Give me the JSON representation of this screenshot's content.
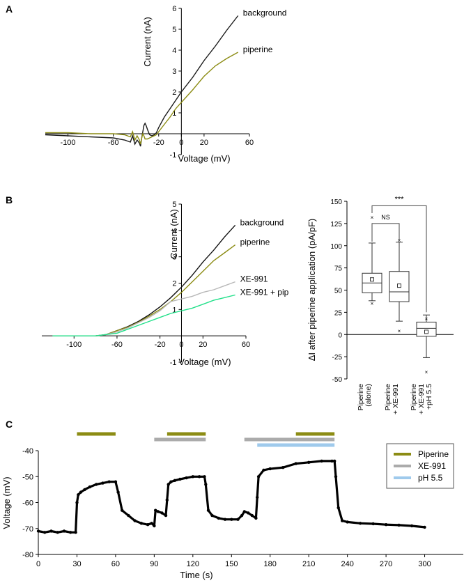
{
  "panels": {
    "A": {
      "label": "A",
      "chart_data": {
        "type": "line",
        "xlabel": "Voltage (mV)",
        "ylabel": "Current (nA)",
        "xlim": [
          -120,
          60
        ],
        "ylim": [
          -1,
          6
        ],
        "xticks": [
          -100,
          -60,
          -20,
          0,
          20,
          60
        ],
        "yticks": [
          -1,
          1,
          2,
          3,
          4,
          5,
          6
        ],
        "series": [
          {
            "name": "background",
            "color": "#1a1a1a",
            "x": [
              -120,
              -100,
              -80,
              -60,
              -50,
              -45,
              -43,
              -41,
              -39,
              -37,
              -36,
              -35,
              -34,
              -33,
              -32,
              -31,
              -30,
              -29,
              -28,
              -26,
              -24,
              -22,
              -20,
              -15,
              -10,
              -5,
              0,
              10,
              20,
              30,
              40,
              50
            ],
            "y": [
              -0.05,
              -0.1,
              -0.15,
              -0.2,
              -0.3,
              -0.4,
              -0.1,
              -0.5,
              -0.3,
              -0.45,
              -0.6,
              -0.2,
              0.1,
              0.4,
              0.5,
              0.38,
              0.22,
              0.08,
              -0.05,
              -0.1,
              -0.05,
              0.05,
              0.3,
              0.8,
              1.2,
              1.6,
              2.0,
              2.7,
              3.5,
              4.2,
              4.95,
              5.65
            ]
          },
          {
            "name": "piperine",
            "color": "#8c8c14",
            "x": [
              -120,
              -100,
              -80,
              -60,
              -50,
              -45,
              -43,
              -41,
              -39,
              -37,
              -36,
              -35,
              -34,
              -33,
              -32,
              -30,
              -28,
              -26,
              -24,
              -22,
              -20,
              -15,
              -10,
              -5,
              0,
              10,
              20,
              30,
              40,
              50
            ],
            "y": [
              0.05,
              0.05,
              0.0,
              0.0,
              -0.05,
              -0.15,
              0.1,
              -0.3,
              -0.1,
              -0.3,
              -0.5,
              -0.2,
              0.0,
              -0.1,
              -0.25,
              -0.25,
              -0.2,
              -0.15,
              -0.1,
              -0.05,
              0.1,
              0.45,
              0.8,
              1.2,
              1.5,
              2.1,
              2.75,
              3.25,
              3.6,
              3.9
            ]
          }
        ]
      }
    },
    "B": {
      "label": "B",
      "chart_data": [
        {
          "type": "line",
          "xlabel": "Voltage (mV)",
          "ylabel": "Current (nA)",
          "xlim": [
            -130,
            60
          ],
          "ylim": [
            -1,
            5
          ],
          "xticks": [
            -100,
            -60,
            -20,
            0,
            20,
            60
          ],
          "yticks": [
            -1,
            1,
            2,
            3,
            4,
            5
          ],
          "series": [
            {
              "name": "background",
              "color": "#111111",
              "x": [
                -120,
                -100,
                -80,
                -70,
                -60,
                -50,
                -40,
                -30,
                -20,
                -10,
                0,
                10,
                20,
                30,
                40,
                50
              ],
              "y": [
                0.0,
                0.0,
                0.0,
                0.05,
                0.2,
                0.35,
                0.55,
                0.8,
                1.1,
                1.45,
                1.85,
                2.3,
                2.8,
                3.25,
                3.75,
                4.2
              ]
            },
            {
              "name": "piperine",
              "color": "#8c8c14",
              "x": [
                -120,
                -100,
                -80,
                -70,
                -60,
                -50,
                -40,
                -30,
                -20,
                -10,
                0,
                10,
                20,
                30,
                40,
                50
              ],
              "y": [
                0.0,
                0.0,
                0.0,
                0.05,
                0.2,
                0.33,
                0.52,
                0.75,
                1.0,
                1.3,
                1.65,
                2.05,
                2.45,
                2.85,
                3.15,
                3.45
              ]
            },
            {
              "name": "XE-991",
              "color": "#b8b8b8",
              "x": [
                -120,
                -100,
                -80,
                -70,
                -60,
                -50,
                -40,
                -30,
                -20,
                -10,
                -5,
                0,
                10,
                20,
                30,
                40,
                50
              ],
              "y": [
                0.0,
                0.0,
                0.0,
                0.05,
                0.15,
                0.3,
                0.5,
                0.7,
                0.95,
                1.3,
                1.35,
                1.4,
                1.5,
                1.65,
                1.75,
                1.9,
                2.05
              ]
            },
            {
              "name": "XE-991 + pip",
              "color": "#22e08a",
              "x": [
                -120,
                -100,
                -80,
                -70,
                -60,
                -50,
                -40,
                -30,
                -20,
                -10,
                0,
                10,
                20,
                30,
                40,
                50
              ],
              "y": [
                0.0,
                0.0,
                0.0,
                0.05,
                0.1,
                0.25,
                0.4,
                0.55,
                0.7,
                0.85,
                0.95,
                1.05,
                1.2,
                1.35,
                1.45,
                1.55
              ]
            }
          ]
        },
        {
          "type": "box",
          "ylabel": "ΔI after piperine application (pA/pF)",
          "ylim": [
            -50,
            150
          ],
          "yticks": [
            -50,
            -25,
            0,
            25,
            50,
            75,
            100,
            125,
            150
          ],
          "groups": [
            {
              "label_lines": [
                "Piperine",
                "(alone)"
              ],
              "q1": 47,
              "median": 58,
              "q3": 69,
              "whisker_low": 38,
              "whisker_high": 103,
              "mean": 62,
              "outliers": [
                132,
                35
              ]
            },
            {
              "label_lines": [
                "Piperine",
                "+ XE-991"
              ],
              "q1": 37,
              "median": 48,
              "q3": 71,
              "whisker_low": 15,
              "whisker_high": 104,
              "mean": 55,
              "outliers": [
                106,
                4
              ]
            },
            {
              "label_lines": [
                "Piperine",
                "+ XE-991",
                "+pH 5.5"
              ],
              "q1": -2,
              "median": 7,
              "q3": 14,
              "whisker_low": -26,
              "whisker_high": 22,
              "mean": 3,
              "outliers": [
                -42,
                18
              ]
            }
          ],
          "annotations": [
            {
              "text": "NS",
              "between": [
                0,
                1
              ]
            },
            {
              "text": "***",
              "between": [
                0,
                2
              ]
            }
          ]
        }
      ]
    },
    "C": {
      "label": "C",
      "chart_data": {
        "type": "scatter",
        "xlabel": "Time (s)",
        "ylabel": "Voltage (mV)",
        "xlim": [
          0,
          330
        ],
        "ylim": [
          -80,
          -40
        ],
        "xticks": [
          0,
          30,
          60,
          90,
          120,
          150,
          180,
          210,
          240,
          270,
          300
        ],
        "yticks": [
          -80,
          -70,
          -60,
          -50,
          -40
        ],
        "trace": {
          "color": "#000000",
          "x": [
            0,
            5,
            10,
            15,
            20,
            25,
            29,
            30,
            31,
            33,
            36,
            40,
            45,
            50,
            55,
            60,
            62,
            65,
            70,
            75,
            80,
            85,
            88,
            90,
            91,
            93,
            96,
            99,
            100,
            101,
            103,
            106,
            110,
            115,
            120,
            125,
            129,
            130,
            132,
            135,
            140,
            145,
            150,
            155,
            158,
            160,
            163,
            166,
            169,
            170,
            171,
            175,
            180,
            190,
            200,
            210,
            220,
            228,
            230,
            231,
            233,
            236,
            240,
            250,
            260,
            270,
            280,
            290,
            300
          ],
          "y": [
            -71,
            -71.5,
            -71,
            -71.5,
            -71,
            -71.5,
            -71.5,
            -60,
            -57,
            -56,
            -55,
            -54,
            -53,
            -52.5,
            -52,
            -52,
            -56,
            -63,
            -65,
            -67,
            -68,
            -68.5,
            -68,
            -69,
            -63,
            -63.5,
            -64,
            -65,
            -59,
            -53,
            -52,
            -51.5,
            -51,
            -50.5,
            -50,
            -50,
            -50,
            -53,
            -63,
            -65,
            -66,
            -66.5,
            -66.5,
            -66.5,
            -65,
            -63.5,
            -64,
            -65,
            -66,
            -58,
            -50,
            -47.5,
            -47,
            -46.5,
            -45,
            -44.5,
            -44,
            -44,
            -44,
            -50,
            -62,
            -67,
            -67.5,
            -68,
            -68.2,
            -68.5,
            -68.7,
            -69,
            -69.5
          ]
        },
        "bars": [
          {
            "series": "Piperine",
            "start": 30,
            "end": 60,
            "row": 0
          },
          {
            "series": "Piperine",
            "start": 100,
            "end": 130,
            "row": 0
          },
          {
            "series": "Piperine",
            "start": 200,
            "end": 230,
            "row": 0
          },
          {
            "series": "XE-991",
            "start": 90,
            "end": 130,
            "row": 1
          },
          {
            "series": "XE-991",
            "start": 160,
            "end": 230,
            "row": 1
          },
          {
            "series": "pH 5.5",
            "start": 170,
            "end": 230,
            "row": 2
          }
        ],
        "legend": {
          "position": "top-right",
          "entries": [
            {
              "name": "Piperine",
              "color": "#8c8c14"
            },
            {
              "name": "XE-991",
              "color": "#ababab"
            },
            {
              "name": "pH 5.5",
              "color": "#9fcaec"
            }
          ]
        }
      }
    }
  }
}
